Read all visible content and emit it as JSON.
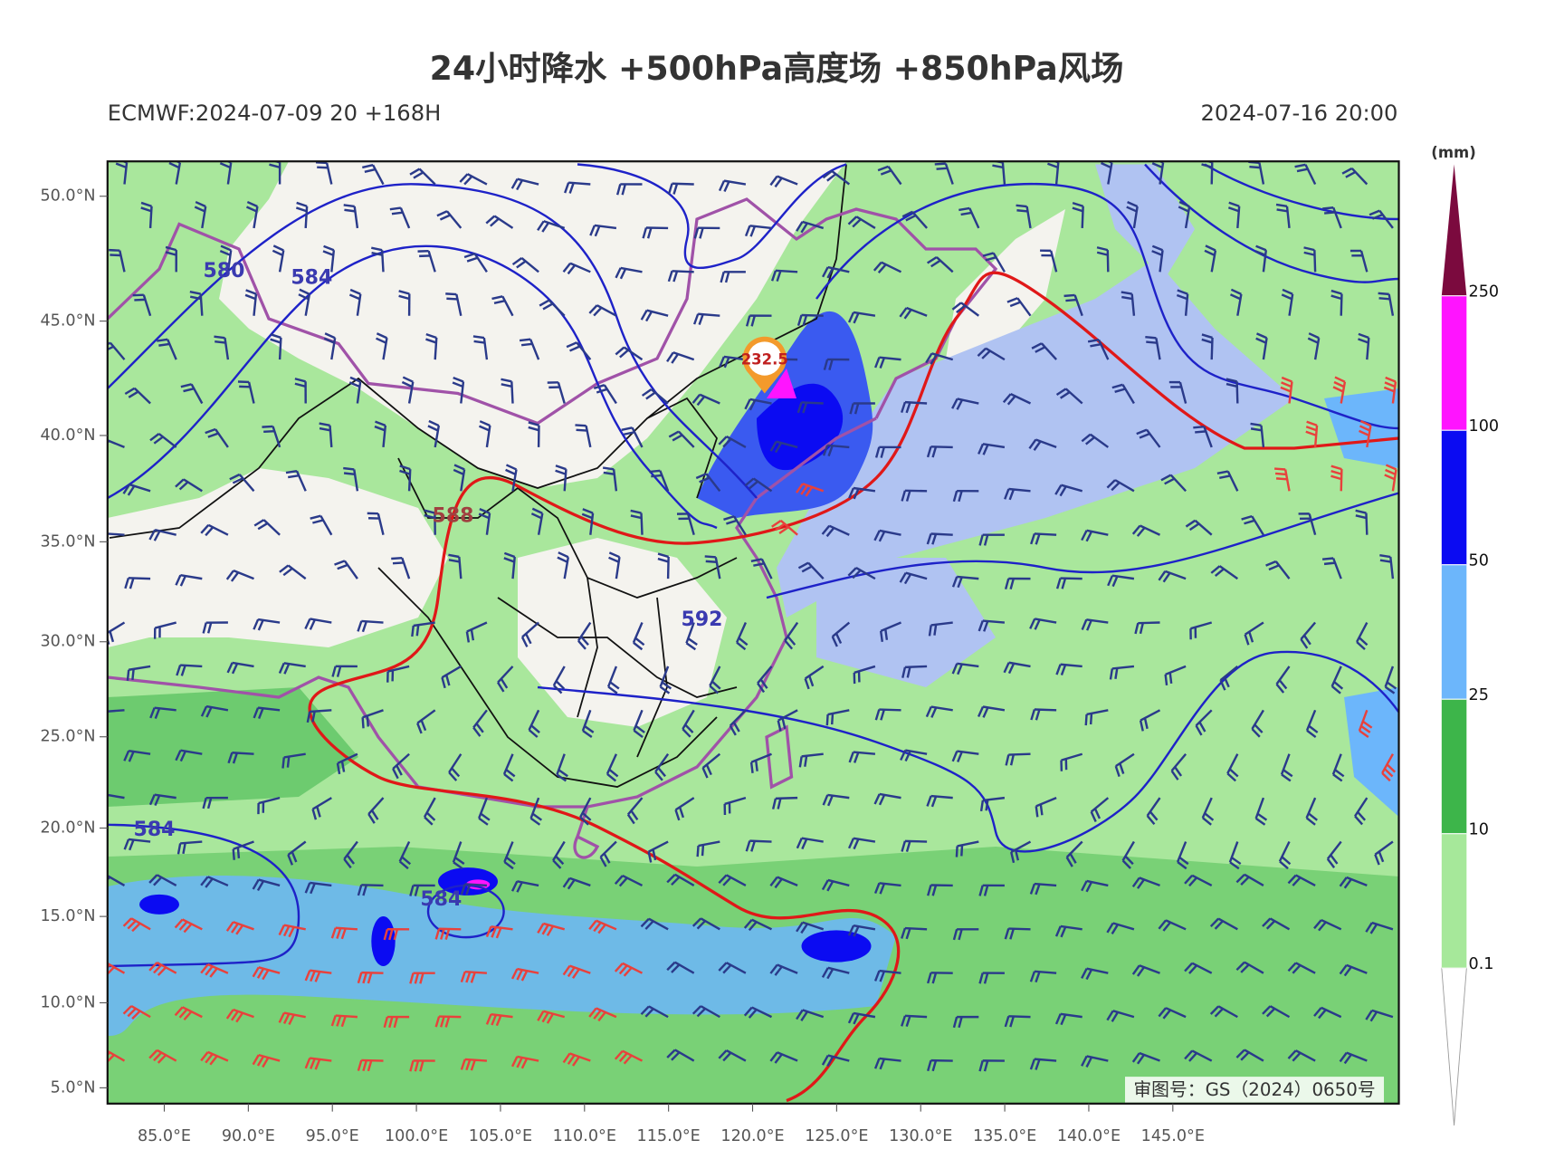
{
  "header": {
    "title": "24小时降水 +500hPa高度场 +850hPa风场",
    "model_run": "ECMWF:2024-07-09 20 +168H",
    "valid_time": "2024-07-16 20:00"
  },
  "map": {
    "lat_ticks": [
      {
        "value": 50,
        "label": "50.0°N"
      },
      {
        "value": 45,
        "label": "45.0°N"
      },
      {
        "value": 40,
        "label": "40.0°N"
      },
      {
        "value": 35,
        "label": "35.0°N"
      },
      {
        "value": 30,
        "label": "30.0°N"
      },
      {
        "value": 25,
        "label": "25.0°N"
      },
      {
        "value": 20,
        "label": "20.0°N"
      },
      {
        "value": 15,
        "label": "15.0°N"
      },
      {
        "value": 10,
        "label": "10.0°N"
      },
      {
        "value": 5,
        "label": "5.0°N"
      }
    ],
    "lon_ticks": [
      {
        "value": 85,
        "label": "85.0°E"
      },
      {
        "value": 90,
        "label": "90.0°E"
      },
      {
        "value": 95,
        "label": "95.0°E"
      },
      {
        "value": 100,
        "label": "100.0°E"
      },
      {
        "value": 105,
        "label": "105.0°E"
      },
      {
        "value": 110,
        "label": "110.0°E"
      },
      {
        "value": 115,
        "label": "115.0°E"
      },
      {
        "value": 120,
        "label": "120.0°E"
      },
      {
        "value": 125,
        "label": "125.0°E"
      },
      {
        "value": 130,
        "label": "130.0°E"
      },
      {
        "value": 135,
        "label": "135.0°E"
      },
      {
        "value": 140,
        "label": "140.0°E"
      },
      {
        "value": 145,
        "label": "145.0°E"
      }
    ],
    "contour_labels": [
      "580",
      "584",
      "588",
      "592",
      "584",
      "584"
    ],
    "max_precip": 232.5,
    "approval": "审图号：GS（2024）0650号"
  },
  "colorbar": {
    "unit": "(mm)",
    "levels": [
      0.1,
      10,
      25,
      50,
      100,
      250
    ],
    "colors": [
      "#ffffff",
      "#a6e89a",
      "#3db54a",
      "#6cb6fb",
      "#0b0bf2",
      "#ff14ff",
      "#7b0a3e"
    ]
  }
}
